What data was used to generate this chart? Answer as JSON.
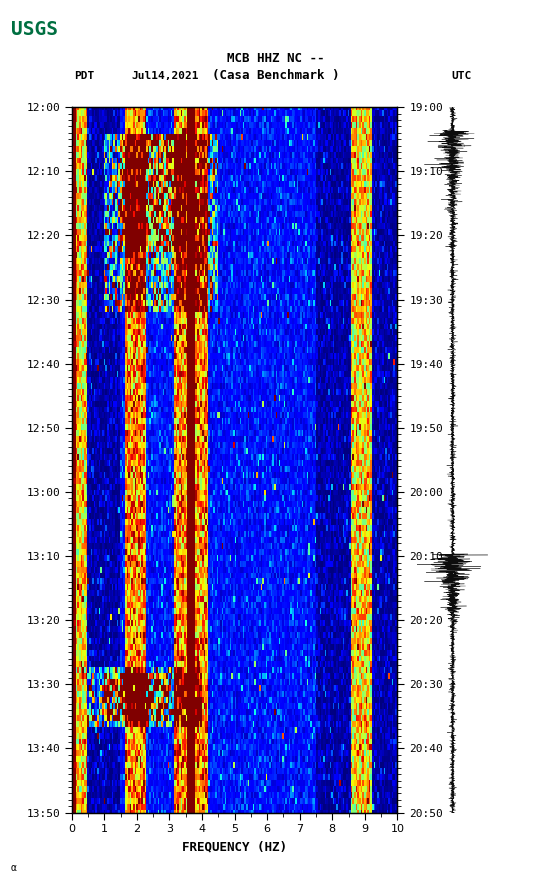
{
  "title_line1": "MCB HHZ NC --",
  "title_line2": "(Casa Benchmark )",
  "date_label": "Jul14,2021",
  "left_tz": "PDT",
  "right_tz": "UTC",
  "left_times": [
    "12:00",
    "12:10",
    "12:20",
    "12:30",
    "12:40",
    "12:50",
    "13:00",
    "13:10",
    "13:20",
    "13:30",
    "13:40",
    "13:50"
  ],
  "right_times": [
    "19:00",
    "19:10",
    "19:20",
    "19:30",
    "19:40",
    "19:50",
    "20:00",
    "20:10",
    "20:20",
    "20:30",
    "20:40",
    "20:50"
  ],
  "freq_min": 0,
  "freq_max": 10,
  "freq_label": "FREQUENCY (HZ)",
  "freq_ticks": [
    0,
    1,
    2,
    3,
    4,
    5,
    6,
    7,
    8,
    9,
    10
  ],
  "background_color": "#ffffff",
  "spectrogram_cmap": "jet",
  "fig_width": 5.52,
  "fig_height": 8.93,
  "usgs_color": "#006f41",
  "vmin": 0,
  "vmax": 6
}
